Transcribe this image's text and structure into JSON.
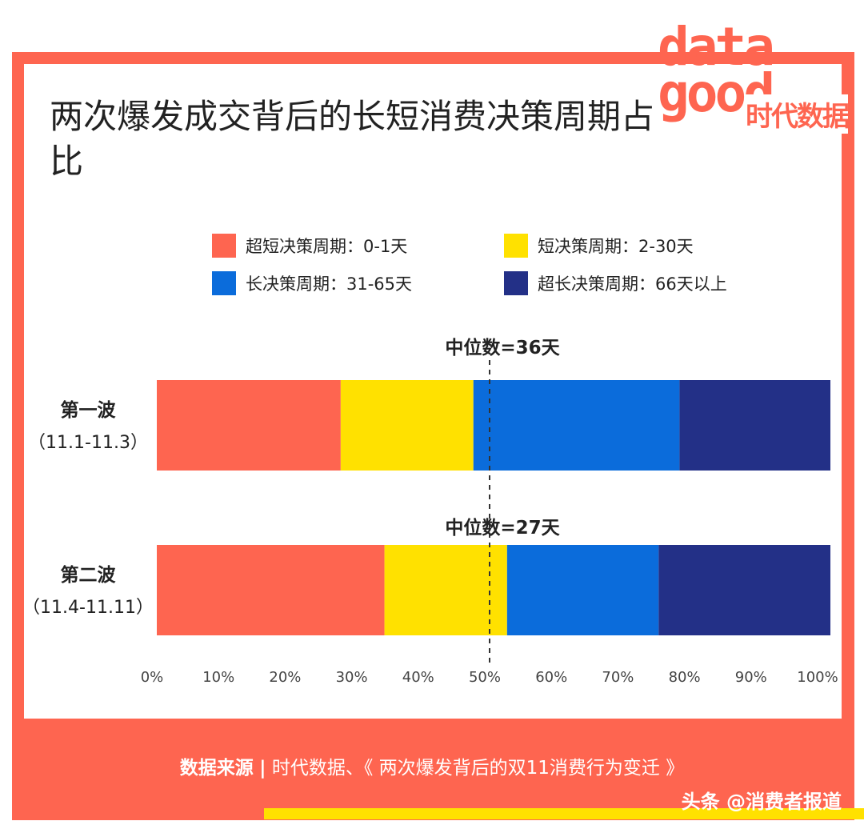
{
  "title": "两次爆发成交背后的长短消费决策周期占比",
  "logo": {
    "text": "data good",
    "cn": "时代数据"
  },
  "colors": {
    "frame": "#fe6550",
    "panel": "#ffffff",
    "accent_strip": "#ffe100"
  },
  "chart_data": {
    "type": "bar",
    "orientation": "horizontal-stacked",
    "categories": [
      "第一波（11.1-11.3）",
      "第二波（11.4-11.11）"
    ],
    "category_lines": [
      [
        "第一波",
        "（11.1-11.3）"
      ],
      [
        "第二波",
        "（11.4-11.11）"
      ]
    ],
    "series": [
      {
        "name": "超短决策周期：0-1天",
        "color": "#fe6550",
        "values": [
          27.3,
          33.8
        ]
      },
      {
        "name": "短决策周期：2-30天",
        "color": "#ffe100",
        "values": [
          19.7,
          18.2
        ]
      },
      {
        "name": "长决策周期：31-65天",
        "color": "#0b6cdb",
        "values": [
          30.6,
          22.5
        ]
      },
      {
        "name": "超长决策周期：66天以上",
        "color": "#233087",
        "values": [
          22.4,
          25.5
        ]
      }
    ],
    "xlim": [
      0,
      100
    ],
    "xticks": [
      "0%",
      "10%",
      "20%",
      "30%",
      "40%",
      "50%",
      "60%",
      "70%",
      "80%",
      "90%",
      "100%"
    ],
    "reference_line": {
      "x": 50,
      "style": "dashed"
    },
    "annotations": [
      "中位数=36天",
      "中位数=27天"
    ],
    "legend": "top",
    "grid": false
  },
  "footer": {
    "label": "数据来源",
    "sep": "|",
    "text": "时代数据、《 两次爆发背后的双11消费行为变迁 》"
  },
  "watermark": "头条 @消费者报道"
}
